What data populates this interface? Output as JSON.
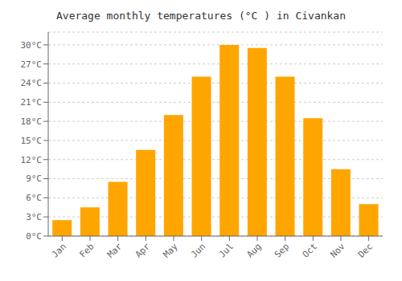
{
  "chart_data": {
    "type": "bar",
    "title": "Average monthly temperatures (°C ) in Civankan",
    "categories": [
      "Jan",
      "Feb",
      "Mar",
      "Apr",
      "May",
      "Jun",
      "Jul",
      "Aug",
      "Sep",
      "Oct",
      "Nov",
      "Dec"
    ],
    "values": [
      2.5,
      4.5,
      8.5,
      13.5,
      19.0,
      25.0,
      30.0,
      29.5,
      25.0,
      18.5,
      10.5,
      5.0
    ],
    "color": "#FFA500",
    "ylim": [
      0,
      32
    ],
    "yticks": [
      {
        "value": 0,
        "label": "0°C"
      },
      {
        "value": 3,
        "label": "3°C"
      },
      {
        "value": 6,
        "label": "6°C"
      },
      {
        "value": 9,
        "label": "9°C"
      },
      {
        "value": 12,
        "label": "12°C"
      },
      {
        "value": 15,
        "label": "15°C"
      },
      {
        "value": 18,
        "label": "18°C"
      },
      {
        "value": 21,
        "label": "21°C"
      },
      {
        "value": 24,
        "label": "24°C"
      },
      {
        "value": 27,
        "label": "27°C"
      },
      {
        "value": 30,
        "label": "30°C"
      }
    ],
    "grid": true
  }
}
